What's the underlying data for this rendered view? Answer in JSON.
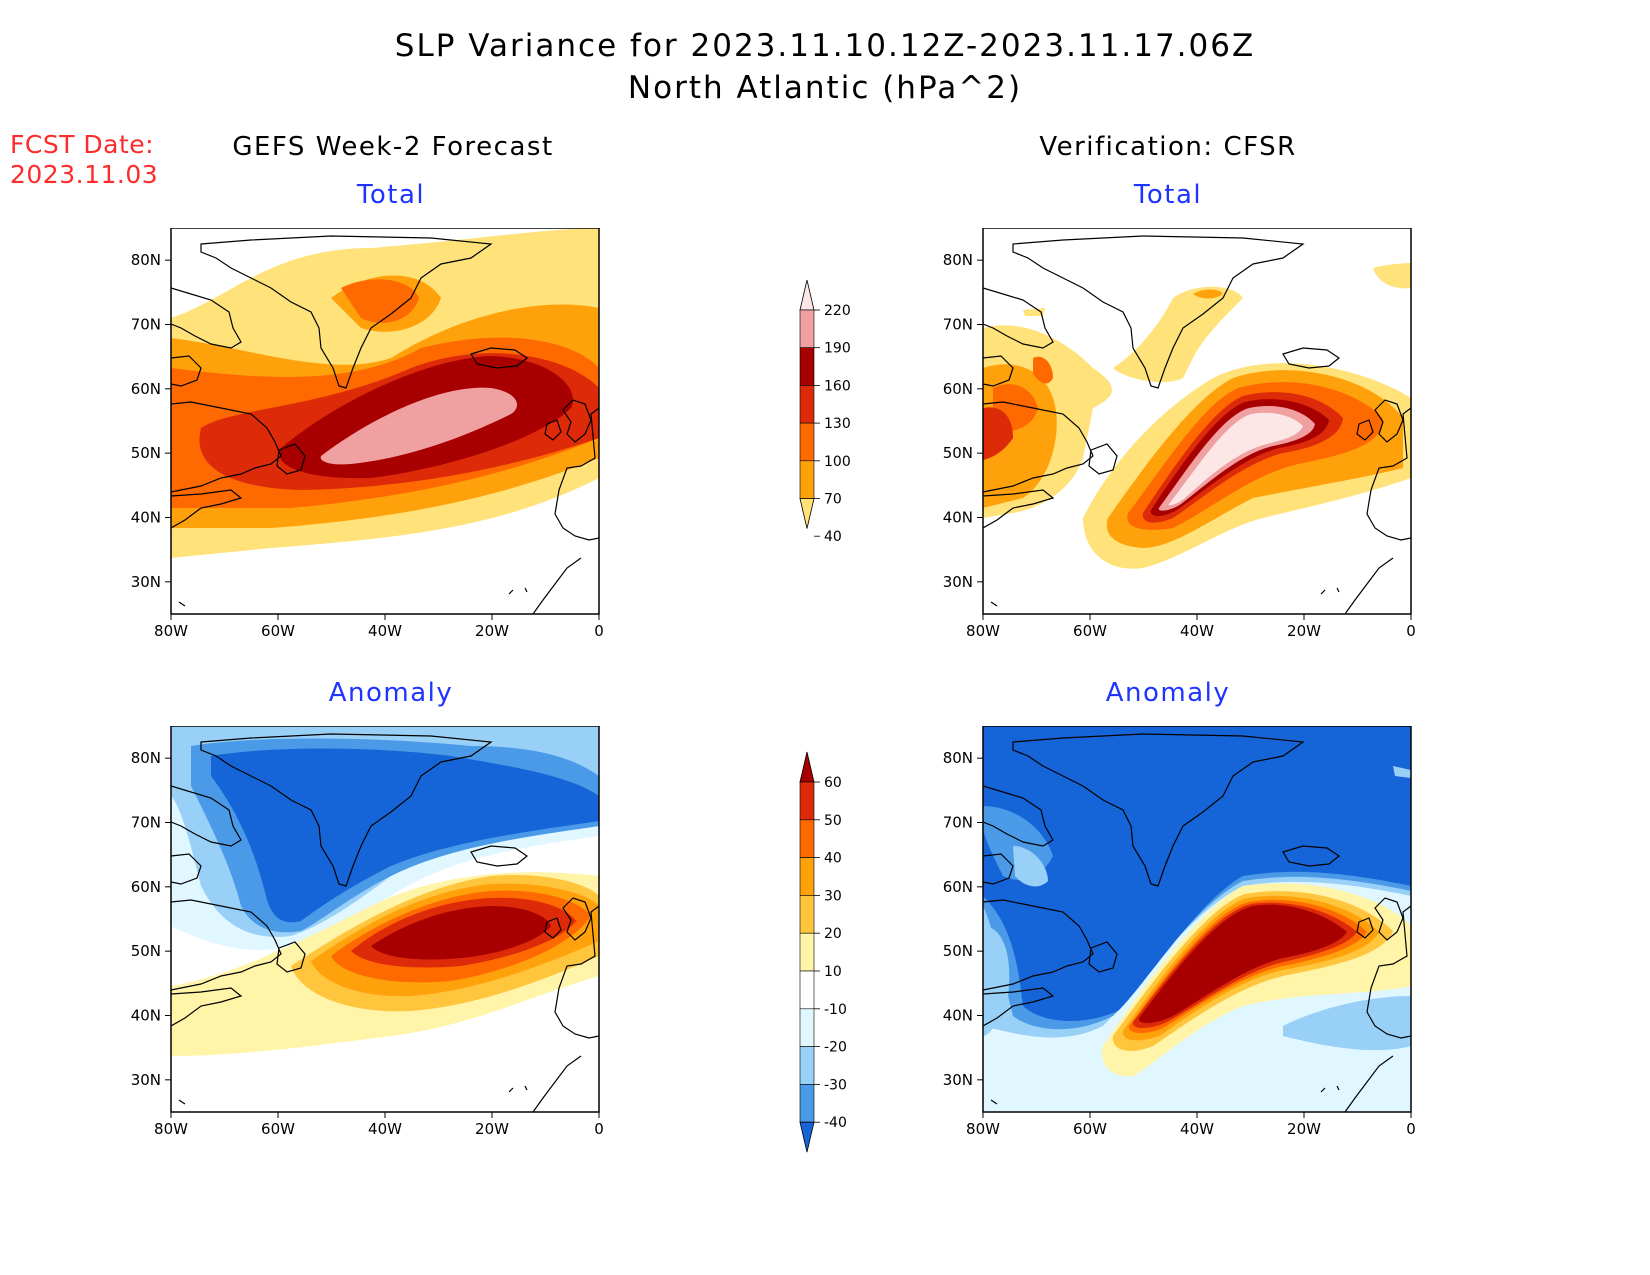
{
  "title": {
    "line1": "SLP Variance for 2023.11.10.12Z-2023.11.17.06Z",
    "line2": "North Atlantic (hPa^2)"
  },
  "fcst": {
    "label": "FCST Date:",
    "date": "2023.11.03"
  },
  "columns": {
    "left": "GEFS Week-2 Forecast",
    "right": "Verification: CFSR"
  },
  "panels": {
    "tl": "Total",
    "tr": "Total",
    "bl": "Anomaly",
    "br": "Anomaly"
  },
  "axes": {
    "lat_labels": [
      "80N",
      "70N",
      "60N",
      "50N",
      "40N",
      "30N"
    ],
    "lat_values": [
      80,
      70,
      60,
      50,
      40,
      30
    ],
    "lon_labels": [
      "80W",
      "60W",
      "40W",
      "20W",
      "0"
    ],
    "lon_values": [
      -80,
      -60,
      -40,
      -20,
      0
    ],
    "lon_range": [
      -80,
      0
    ],
    "lat_range": [
      25,
      85
    ]
  },
  "colorbar_total": {
    "levels": [
      "220",
      "190",
      "160",
      "130",
      "100",
      "70",
      "40"
    ],
    "colors": [
      "#fde6e6",
      "#f0a0a0",
      "#a80000",
      "#dd2a08",
      "#fe6a00",
      "#ffa10b",
      "#ffe27a"
    ]
  },
  "colorbar_anom": {
    "levels": [
      "60",
      "50",
      "40",
      "30",
      "20",
      "10",
      "-10",
      "-20",
      "-30",
      "-40"
    ],
    "colors": [
      "#a80000",
      "#dd2a08",
      "#fe6a00",
      "#ffa10b",
      "#ffc53d",
      "#fff4a8",
      "#ffffff",
      "#e0f7ff",
      "#98d0f7",
      "#4a9ae8",
      "#1565d8"
    ]
  }
}
